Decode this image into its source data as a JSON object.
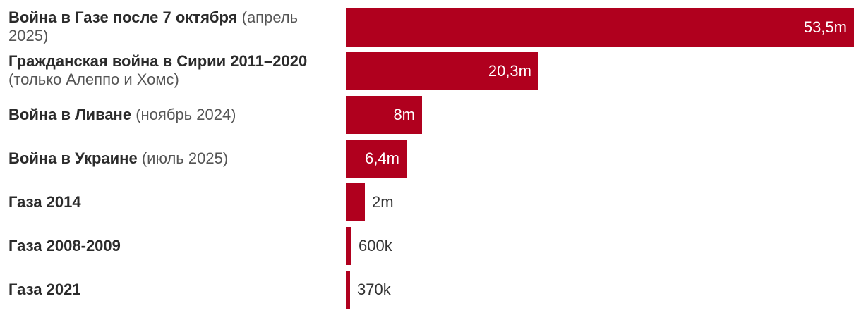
{
  "chart_data": {
    "type": "bar",
    "orientation": "horizontal",
    "title": "",
    "xlabel": "",
    "ylabel": "",
    "bar_color": "#b0001e",
    "categories": [
      {
        "main": "Война в Газе после 7 октября",
        "sub": "(апрель 2025)"
      },
      {
        "main": "Гражданская война в Сирии 2011–2020",
        "sub": "(только Алеппо и Хомс)"
      },
      {
        "main": "Война в Ливане",
        "sub": "(ноябрь 2024)"
      },
      {
        "main": "Война в Украине",
        "sub": "(июль 2025)"
      },
      {
        "main": "Газа 2014",
        "sub": ""
      },
      {
        "main": "Газа 2008-2009",
        "sub": ""
      },
      {
        "main": "Газа 2021",
        "sub": ""
      }
    ],
    "values": [
      53500000,
      20300000,
      8000000,
      6400000,
      2000000,
      600000,
      370000
    ],
    "value_labels": [
      "53,5m",
      "20,3m",
      "8m",
      "6,4m",
      "2m",
      "600k",
      "370k"
    ],
    "xlim": [
      0,
      53500000
    ]
  }
}
